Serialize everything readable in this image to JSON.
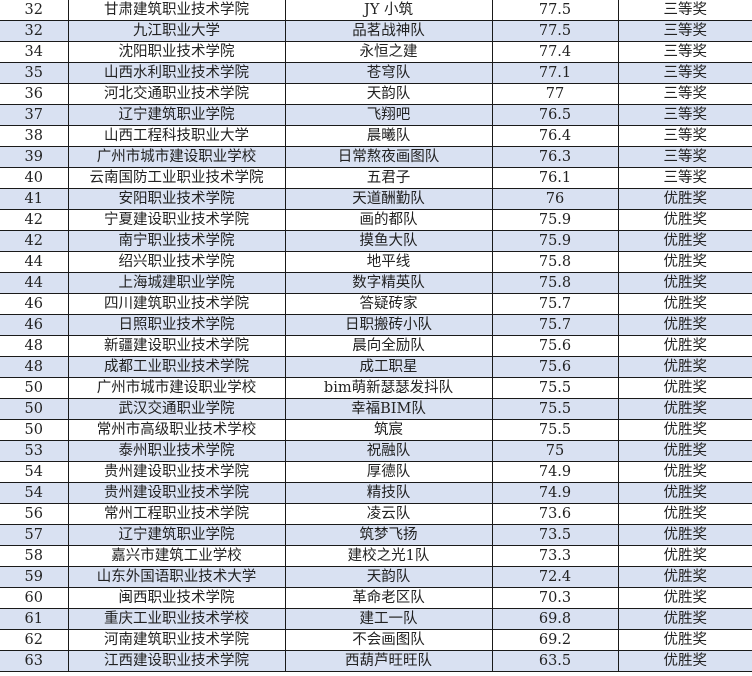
{
  "rows": [
    [
      "32",
      "甘肃建筑职业技术学院",
      "JY 小筑",
      "77.5",
      "三等奖"
    ],
    [
      "32",
      "九江职业大学",
      "品茗战神队",
      "77.5",
      "三等奖"
    ],
    [
      "34",
      "沈阳职业技术学院",
      "永恒之建",
      "77.4",
      "三等奖"
    ],
    [
      "35",
      "山西水利职业技术学院",
      "苍穹队",
      "77.1",
      "三等奖"
    ],
    [
      "36",
      "河北交通职业技术学院",
      "天韵队",
      "77",
      "三等奖"
    ],
    [
      "37",
      "辽宁建筑职业学院",
      "飞翔吧",
      "76.5",
      "三等奖"
    ],
    [
      "38",
      "山西工程科技职业大学",
      "晨曦队",
      "76.4",
      "三等奖"
    ],
    [
      "39",
      "广州市城市建设职业学校",
      "日常熬夜画图队",
      "76.3",
      "三等奖"
    ],
    [
      "40",
      "云南国防工业职业技术学院",
      "五君子",
      "76.1",
      "三等奖"
    ],
    [
      "41",
      "安阳职业技术学院",
      "天道酬勤队",
      "76",
      "优胜奖"
    ],
    [
      "42",
      "宁夏建设职业技术学院",
      "画的都队",
      "75.9",
      "优胜奖"
    ],
    [
      "42",
      "南宁职业技术学院",
      "摸鱼大队",
      "75.9",
      "优胜奖"
    ],
    [
      "44",
      "绍兴职业技术学院",
      "地平线",
      "75.8",
      "优胜奖"
    ],
    [
      "44",
      "上海城建职业学院",
      "数字精英队",
      "75.8",
      "优胜奖"
    ],
    [
      "46",
      "四川建筑职业技术学院",
      "答疑砖家",
      "75.7",
      "优胜奖"
    ],
    [
      "46",
      "日照职业技术学院",
      "日职搬砖小队",
      "75.7",
      "优胜奖"
    ],
    [
      "48",
      "新疆建设职业技术学院",
      "晨向全励队",
      "75.6",
      "优胜奖"
    ],
    [
      "48",
      "成都工业职业技术学院",
      "成工职星",
      "75.6",
      "优胜奖"
    ],
    [
      "50",
      "广州市城市建设职业学校",
      "bim萌新瑟瑟发抖队",
      "75.5",
      "优胜奖"
    ],
    [
      "50",
      "武汉交通职业学院",
      "幸福BIM队",
      "75.5",
      "优胜奖"
    ],
    [
      "50",
      "常州市高级职业技术学校",
      "筑宸",
      "75.5",
      "优胜奖"
    ],
    [
      "53",
      "泰州职业技术学院",
      "祝融队",
      "75",
      "优胜奖"
    ],
    [
      "54",
      "贵州建设职业技术学院",
      "厚德队",
      "74.9",
      "优胜奖"
    ],
    [
      "54",
      "贵州建设职业技术学院",
      "精技队",
      "74.9",
      "优胜奖"
    ],
    [
      "56",
      "常州工程职业技术学院",
      "凌云队",
      "73.6",
      "优胜奖"
    ],
    [
      "57",
      "辽宁建筑职业学院",
      "筑梦飞扬",
      "73.5",
      "优胜奖"
    ],
    [
      "58",
      "嘉兴市建筑工业学校",
      "建校之光1队",
      "73.3",
      "优胜奖"
    ],
    [
      "59",
      "山东外国语职业技术大学",
      "天韵队",
      "72.4",
      "优胜奖"
    ],
    [
      "60",
      "闽西职业技术学院",
      "革命老区队",
      "70.3",
      "优胜奖"
    ],
    [
      "61",
      "重庆工业职业技术学校",
      "建工一队",
      "69.8",
      "优胜奖"
    ],
    [
      "62",
      "河南建筑职业技术学院",
      "不会画图队",
      "69.2",
      "优胜奖"
    ],
    [
      "63",
      "江西建设职业技术学院",
      "西葫芦旺旺队",
      "63.5",
      "优胜奖"
    ]
  ],
  "colors": {
    "band": "#d9e1f2",
    "border": "#1a1a1a"
  }
}
